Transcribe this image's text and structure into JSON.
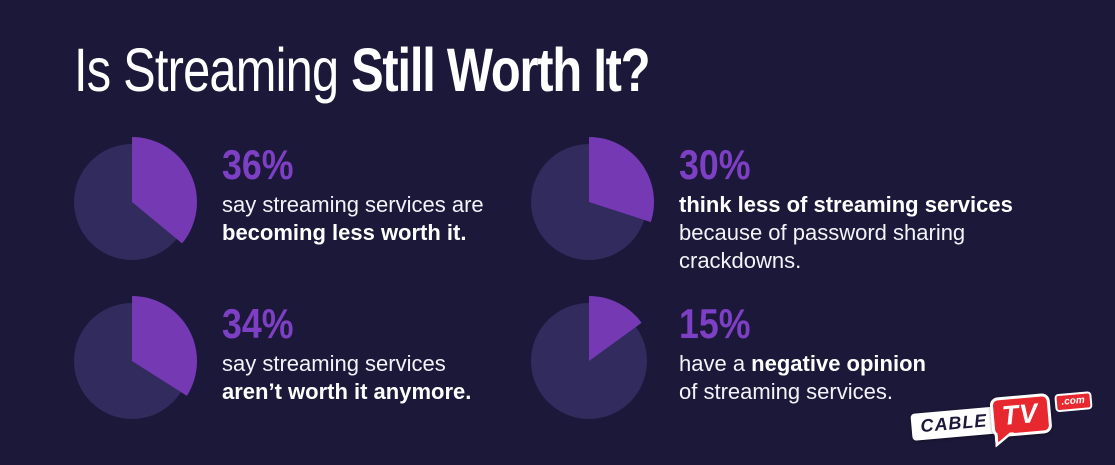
{
  "title": {
    "regular": "Is Streaming ",
    "bold": "Still Worth It?"
  },
  "colors": {
    "background": "#1c1839",
    "pie_base": "#312b5e",
    "pie_slice": "#7539b3",
    "percent_text": "#7d3fc4",
    "body_text": "#f4f3f9",
    "logo_red": "#e8282f",
    "logo_navy": "#1c1839",
    "logo_white": "#ffffff"
  },
  "stats": [
    {
      "percent": 36,
      "percent_label": "36%",
      "lines": [
        [
          {
            "text": "say streaming services are",
            "bold": false
          }
        ],
        [
          {
            "text": "becoming less worth it.",
            "bold": true
          }
        ]
      ]
    },
    {
      "percent": 30,
      "percent_label": "30%",
      "lines": [
        [
          {
            "text": "think less of streaming services",
            "bold": true
          }
        ],
        [
          {
            "text": "because of password sharing",
            "bold": false
          }
        ],
        [
          {
            "text": "crackdowns.",
            "bold": false
          }
        ]
      ]
    },
    {
      "percent": 34,
      "percent_label": "34%",
      "lines": [
        [
          {
            "text": "say streaming services",
            "bold": false
          }
        ],
        [
          {
            "text": "aren’t worth it anymore.",
            "bold": true
          }
        ]
      ]
    },
    {
      "percent": 15,
      "percent_label": "15%",
      "lines": [
        [
          {
            "text": "have a ",
            "bold": false
          },
          {
            "text": "negative opinion",
            "bold": true
          }
        ],
        [
          {
            "text": "of streaming services.",
            "bold": false
          }
        ]
      ]
    }
  ],
  "logo": {
    "cable": "CABLE",
    "tv": "TV",
    "com": ".com"
  },
  "chart_data": [
    {
      "type": "pie",
      "title": "Is Streaming Still Worth It?",
      "values": [
        36,
        64
      ],
      "labels": [
        "36%",
        "rest"
      ],
      "caption": "say streaming services are becoming less worth it.",
      "slice_start": "12 o'clock, clockwise",
      "legend_position": "none"
    },
    {
      "type": "pie",
      "values": [
        30,
        70
      ],
      "labels": [
        "30%",
        "rest"
      ],
      "caption": "think less of streaming services because of password sharing crackdowns.",
      "slice_start": "12 o'clock, clockwise",
      "legend_position": "none"
    },
    {
      "type": "pie",
      "values": [
        34,
        66
      ],
      "labels": [
        "34%",
        "rest"
      ],
      "caption": "say streaming services aren’t worth it anymore.",
      "slice_start": "12 o'clock, clockwise",
      "legend_position": "none"
    },
    {
      "type": "pie",
      "values": [
        15,
        85
      ],
      "labels": [
        "15%",
        "rest"
      ],
      "caption": "have a negative opinion of streaming services.",
      "slice_start": "12 o'clock, clockwise",
      "legend_position": "none"
    }
  ]
}
